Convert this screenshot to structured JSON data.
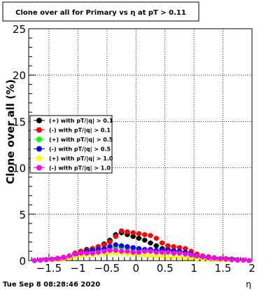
{
  "chart_data": {
    "type": "scatter",
    "title": "Clone  over all for Primary vs   η at pT > 0.11",
    "xlabel": "η",
    "ylabel": "Clone  over all (%)",
    "xlim": [
      -1.85,
      2.0
    ],
    "ylim": [
      0,
      25
    ],
    "grid": true,
    "legend_position": "left-middle",
    "x_ticks": [
      {
        "value": -1.5,
        "label": "−1.5"
      },
      {
        "value": -1.0,
        "label": "−1"
      },
      {
        "value": -0.5,
        "label": "−0.5"
      },
      {
        "value": 0.0,
        "label": "0"
      },
      {
        "value": 0.5,
        "label": "0.5"
      },
      {
        "value": 1.0,
        "label": "1"
      },
      {
        "value": 1.5,
        "label": "1.5"
      },
      {
        "value": 2.0,
        "label": "2"
      }
    ],
    "y_ticks": [
      {
        "value": 0,
        "label": "0"
      },
      {
        "value": 5,
        "label": "5"
      },
      {
        "value": 10,
        "label": "10"
      },
      {
        "value": 15,
        "label": "15"
      },
      {
        "value": 20,
        "label": "20"
      },
      {
        "value": 25,
        "label": "25"
      }
    ],
    "series": [
      {
        "name": "(+) with pT/|q| > 0.1",
        "color": "#000000",
        "x": [
          -1.75,
          -1.65,
          -1.55,
          -1.45,
          -1.35,
          -1.25,
          -1.15,
          -1.05,
          -0.95,
          -0.85,
          -0.75,
          -0.65,
          -0.55,
          -0.45,
          -0.35,
          -0.25,
          -0.15,
          -0.05,
          0.05,
          0.15,
          0.25,
          0.35,
          0.45,
          0.55,
          0.65,
          0.75,
          0.85,
          0.95,
          1.05,
          1.15,
          1.25,
          1.35,
          1.45,
          1.55,
          1.65,
          1.75,
          1.85,
          1.95
        ],
        "values": [
          0.0,
          0.05,
          0.1,
          0.15,
          0.2,
          0.35,
          0.5,
          0.8,
          1.0,
          1.2,
          1.3,
          1.5,
          1.8,
          2.2,
          2.8,
          3.0,
          2.8,
          2.6,
          2.4,
          2.2,
          1.9,
          1.6,
          1.3,
          1.2,
          1.1,
          1.0,
          0.9,
          0.7,
          0.5,
          0.4,
          0.3,
          0.3,
          0.2,
          0.2,
          0.15,
          0.1,
          0.05,
          0.0
        ]
      },
      {
        "name": "(-) with pT/|q| > 0.1",
        "color": "#ff0000",
        "x": [
          -1.75,
          -1.65,
          -1.55,
          -1.45,
          -1.35,
          -1.25,
          -1.15,
          -1.05,
          -0.95,
          -0.85,
          -0.75,
          -0.65,
          -0.55,
          -0.45,
          -0.35,
          -0.25,
          -0.15,
          -0.05,
          0.05,
          0.15,
          0.25,
          0.35,
          0.45,
          0.55,
          0.65,
          0.75,
          0.85,
          0.95,
          1.05,
          1.15,
          1.25,
          1.35,
          1.45,
          1.55,
          1.65,
          1.75,
          1.85,
          1.95
        ],
        "values": [
          0.0,
          0.05,
          0.1,
          0.15,
          0.25,
          0.35,
          0.5,
          0.8,
          1.0,
          1.1,
          1.3,
          1.5,
          1.7,
          2.0,
          2.6,
          3.2,
          3.1,
          3.0,
          2.9,
          2.8,
          2.7,
          2.4,
          1.9,
          1.6,
          1.5,
          1.4,
          1.3,
          1.0,
          0.7,
          0.5,
          0.4,
          0.3,
          0.2,
          0.2,
          0.1,
          0.1,
          0.05,
          0.0
        ]
      },
      {
        "name": "(+) with pT/|q| > 0.5",
        "color": "#00ff00",
        "x": [
          -1.75,
          -1.65,
          -1.55,
          -1.45,
          -1.35,
          -1.25,
          -1.15,
          -1.05,
          -0.95,
          -0.85,
          -0.75,
          -0.65,
          -0.55,
          -0.45,
          -0.35,
          -0.25,
          -0.15,
          -0.05,
          0.05,
          0.15,
          0.25,
          0.35,
          0.45,
          0.55,
          0.65,
          0.75,
          0.85,
          0.95,
          1.05,
          1.15,
          1.25,
          1.35,
          1.45,
          1.55,
          1.65,
          1.75,
          1.85,
          1.95
        ],
        "values": [
          0.0,
          0.05,
          0.05,
          0.1,
          0.15,
          0.2,
          0.4,
          0.6,
          0.8,
          0.9,
          1.0,
          1.1,
          1.2,
          1.3,
          1.4,
          1.4,
          1.3,
          1.2,
          1.1,
          1.1,
          1.0,
          1.0,
          0.9,
          0.9,
          0.8,
          0.8,
          0.7,
          0.5,
          0.4,
          0.3,
          0.2,
          0.2,
          0.1,
          0.1,
          0.05,
          0.05,
          0.05,
          0.0
        ]
      },
      {
        "name": "(-) with pT/|q| > 0.5",
        "color": "#0000ff",
        "x": [
          -1.75,
          -1.65,
          -1.55,
          -1.45,
          -1.35,
          -1.25,
          -1.15,
          -1.05,
          -0.95,
          -0.85,
          -0.75,
          -0.65,
          -0.55,
          -0.45,
          -0.35,
          -0.25,
          -0.15,
          -0.05,
          0.05,
          0.15,
          0.25,
          0.35,
          0.45,
          0.55,
          0.65,
          0.75,
          0.85,
          0.95,
          1.05,
          1.15,
          1.25,
          1.35,
          1.45,
          1.55,
          1.65,
          1.75,
          1.85,
          1.95
        ],
        "values": [
          0.0,
          0.05,
          0.05,
          0.1,
          0.15,
          0.25,
          0.4,
          0.6,
          0.8,
          1.0,
          1.1,
          1.2,
          1.3,
          1.5,
          1.7,
          1.6,
          1.5,
          1.4,
          1.3,
          1.2,
          1.2,
          1.1,
          1.1,
          1.1,
          1.0,
          1.0,
          0.9,
          0.7,
          0.5,
          0.4,
          0.3,
          0.2,
          0.15,
          0.1,
          0.1,
          0.05,
          0.05,
          0.0
        ]
      },
      {
        "name": "(+) with pT/|q| > 1.0",
        "color": "#ffff00",
        "x": [
          -1.75,
          -1.65,
          -1.55,
          -1.45,
          -1.35,
          -1.25,
          -1.15,
          -1.05,
          -0.95,
          -0.85,
          -0.75,
          -0.65,
          -0.55,
          -0.45,
          -0.35,
          -0.25,
          -0.15,
          -0.05,
          0.05,
          0.15,
          0.25,
          0.35,
          0.45,
          0.55,
          0.65,
          0.75,
          0.85,
          0.95,
          1.05,
          1.15,
          1.25,
          1.35,
          1.45,
          1.55,
          1.65,
          1.75,
          1.85,
          1.95
        ],
        "values": [
          0.0,
          0.05,
          0.05,
          0.1,
          0.1,
          0.15,
          0.3,
          0.4,
          0.5,
          0.6,
          0.6,
          0.7,
          0.7,
          0.8,
          0.8,
          0.8,
          0.7,
          0.7,
          0.6,
          0.6,
          0.5,
          0.5,
          0.5,
          0.4,
          0.4,
          0.4,
          0.3,
          0.3,
          0.2,
          0.2,
          0.15,
          0.1,
          0.1,
          0.05,
          0.05,
          0.05,
          0.0,
          0.0
        ]
      },
      {
        "name": "(-) with pT/|q| > 1.0",
        "color": "#ff00ff",
        "x": [
          -1.75,
          -1.65,
          -1.55,
          -1.45,
          -1.35,
          -1.25,
          -1.15,
          -1.05,
          -0.95,
          -0.85,
          -0.75,
          -0.65,
          -0.55,
          -0.45,
          -0.35,
          -0.25,
          -0.15,
          -0.05,
          0.05,
          0.15,
          0.25,
          0.35,
          0.45,
          0.55,
          0.65,
          0.75,
          0.85,
          0.95,
          1.05,
          1.15,
          1.25,
          1.35,
          1.45,
          1.55,
          1.65,
          1.75,
          1.85,
          1.95
        ],
        "values": [
          0.0,
          0.05,
          0.1,
          0.15,
          0.2,
          0.3,
          0.5,
          0.7,
          0.8,
          0.8,
          0.8,
          0.9,
          1.0,
          1.1,
          1.1,
          1.0,
          1.0,
          0.9,
          0.9,
          1.0,
          1.0,
          0.9,
          0.9,
          0.9,
          0.8,
          0.8,
          0.7,
          0.6,
          0.5,
          0.4,
          0.3,
          0.25,
          0.2,
          0.15,
          0.1,
          0.05,
          0.05,
          0.0
        ]
      }
    ]
  },
  "footer": {
    "timestamp": "Tue Sep  8 08:28:46 2020"
  }
}
